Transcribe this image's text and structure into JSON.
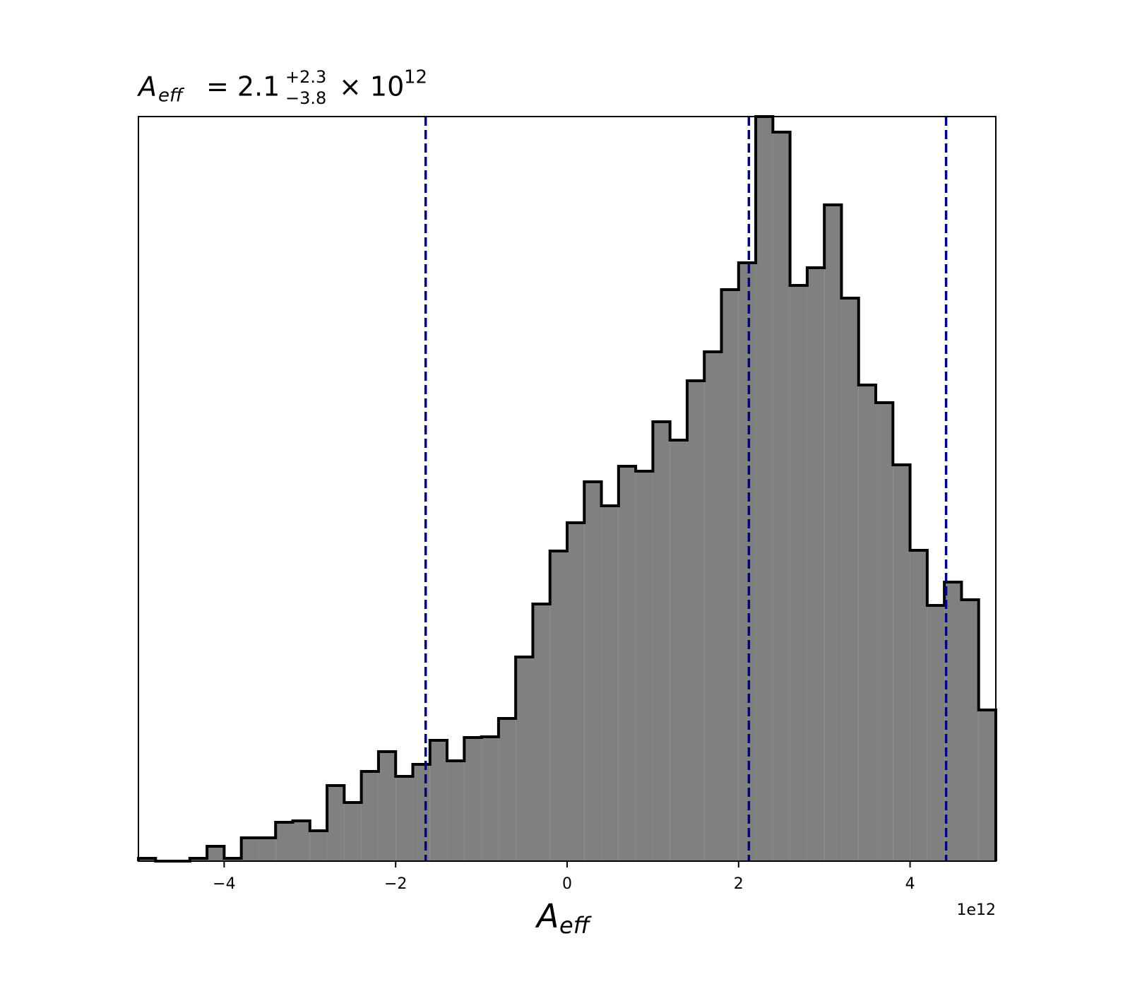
{
  "chart_data": {
    "type": "histogram",
    "title": {
      "symbol": "A",
      "subscript": "eff",
      "equals": "= 2.1",
      "upper": "+2.3",
      "lower": "−3.8",
      "times": "× 10",
      "exponent": "12"
    },
    "xlabel": {
      "symbol": "A",
      "subscript": "eff"
    },
    "offset_text": "1e12",
    "bins": [
      -5,
      -4.8,
      -4.6,
      -4.4,
      -4.2,
      -4,
      -3.8,
      -3.6,
      -3.4,
      -3.2,
      -3,
      -2.8,
      -2.6,
      -2.4,
      -2.2,
      -2,
      -1.8,
      -1.6,
      -1.4,
      -1.2,
      -1,
      -0.8,
      -0.6,
      -0.4,
      -0.2,
      0,
      0.2,
      0.4,
      0.6,
      0.8,
      1,
      1.2,
      1.4,
      1.6,
      1.8,
      2,
      2.2,
      2.4,
      2.6,
      2.8,
      3,
      3.2,
      3.4,
      3.6,
      3.8,
      4,
      4.2,
      4.4,
      4.6,
      4.8,
      5
    ],
    "values": [
      4,
      0,
      0,
      4,
      21,
      4,
      33,
      33,
      55,
      57,
      43,
      107,
      83,
      127,
      155,
      120,
      137,
      171,
      142,
      175,
      176,
      202,
      289,
      364,
      439,
      479,
      537,
      503,
      559,
      552,
      622,
      596,
      680,
      721,
      809,
      847,
      1054,
      1032,
      815,
      840,
      929,
      797,
      674,
      649,
      561,
      440,
      362,
      395,
      370,
      214
    ],
    "color": "#808080",
    "edgecolor": "#000000",
    "vlines": [
      -1.65,
      2.12,
      4.42
    ],
    "vline_color": "#000080",
    "xlim": [
      -5,
      5
    ],
    "ylim": [
      0,
      1054
    ],
    "xticks": [
      {
        "value": -4,
        "label": "−4"
      },
      {
        "value": -2,
        "label": "−2"
      },
      0,
      2,
      4
    ]
  }
}
